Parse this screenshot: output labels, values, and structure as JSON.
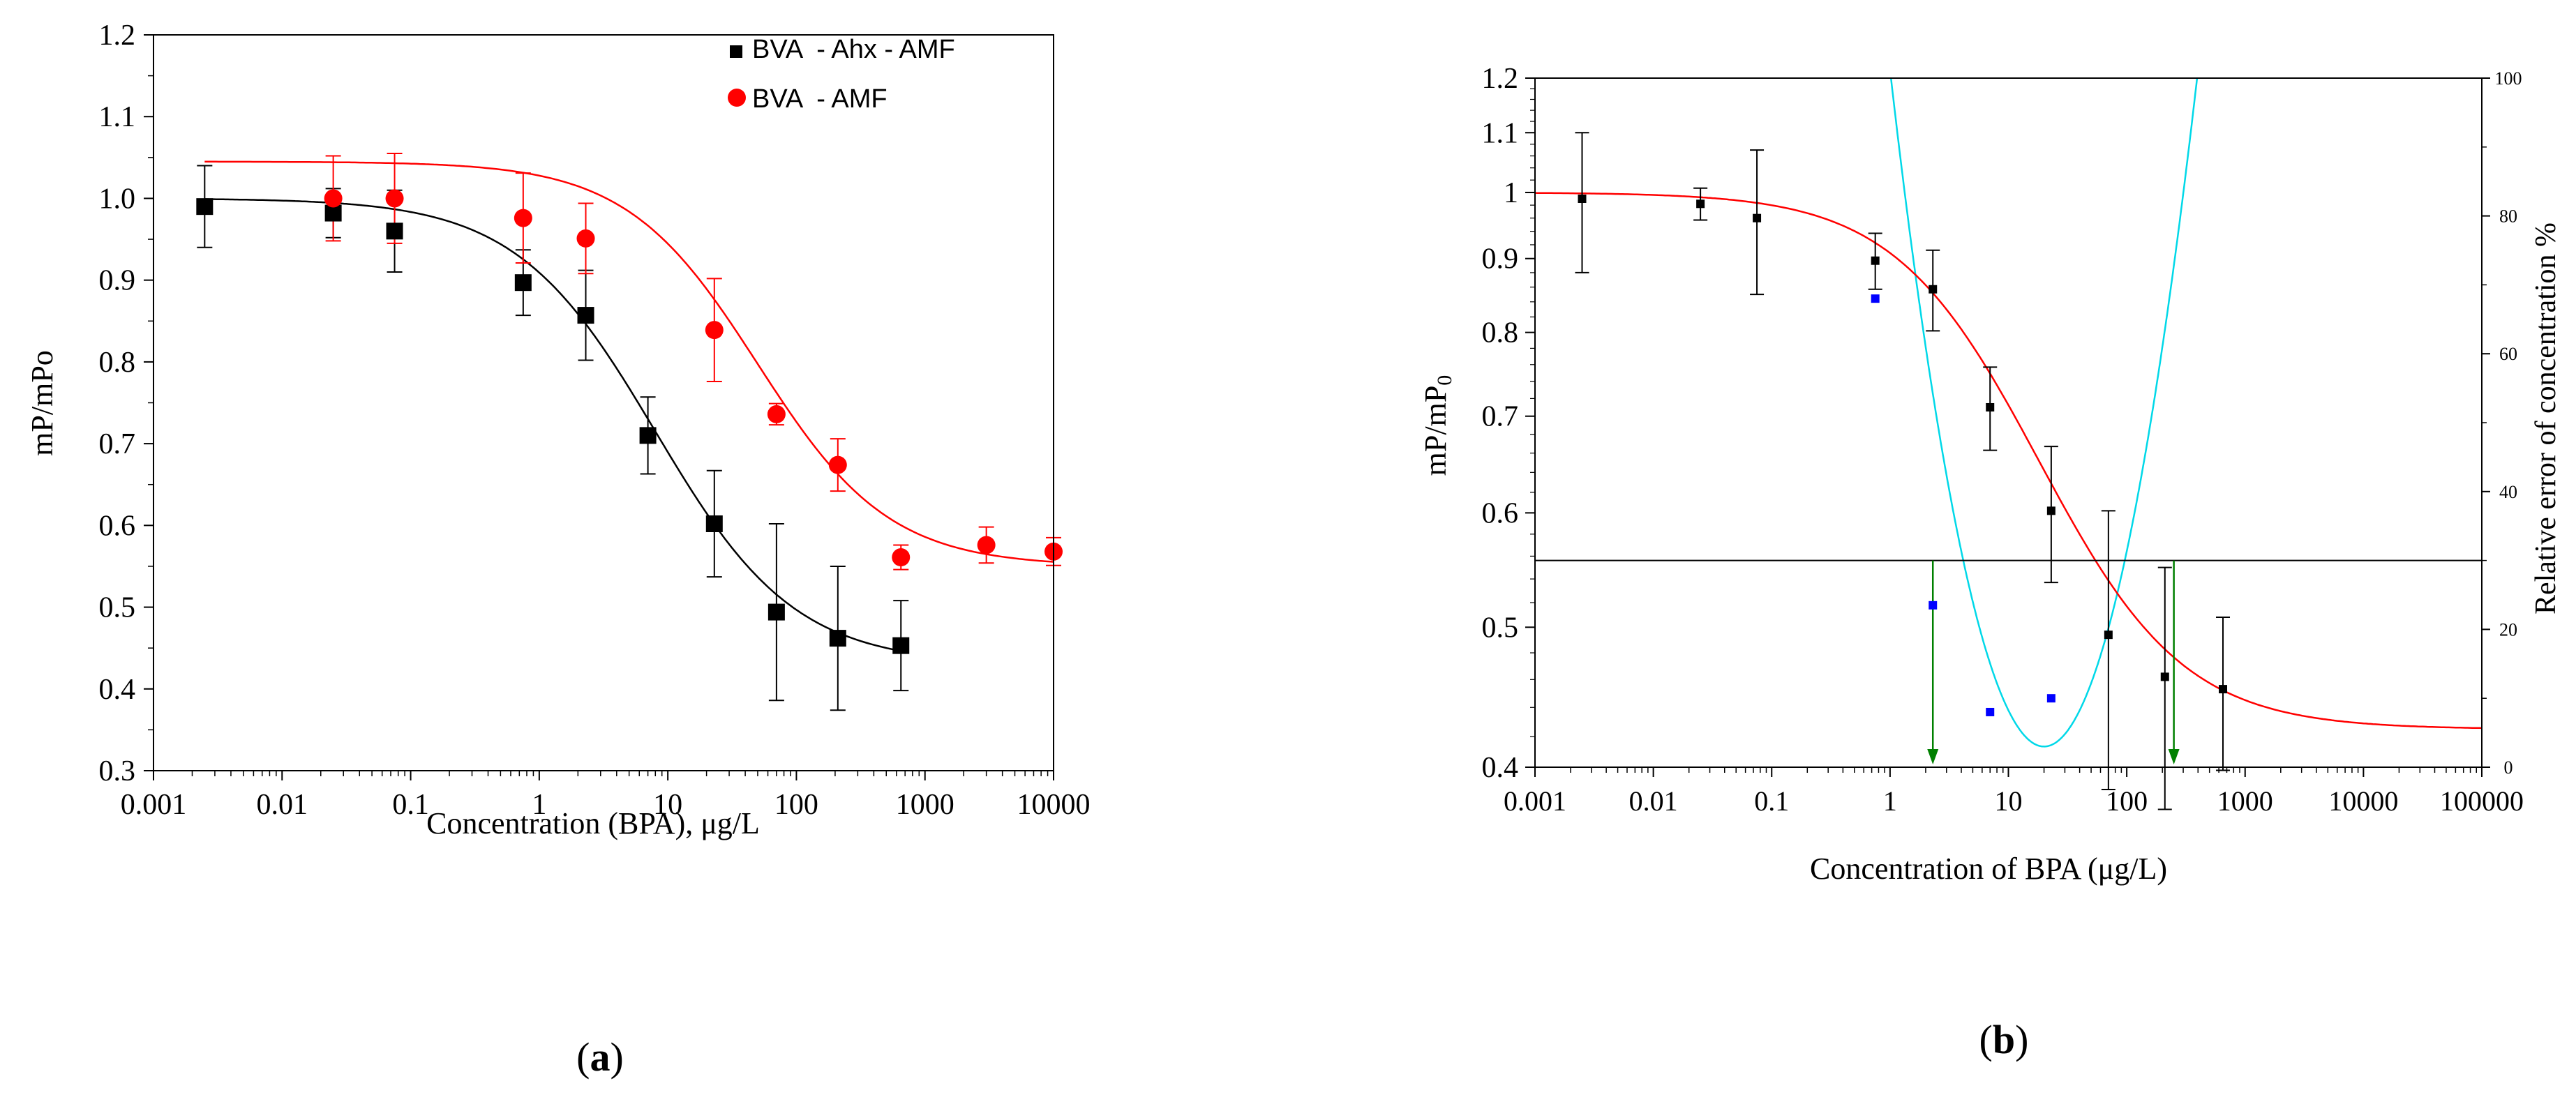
{
  "chart_data": [
    {
      "panel": "a",
      "type": "scatter",
      "panel_label": "a",
      "xlabel": "Concentration (BPA), μg/L",
      "ylabel": "mP/mPo",
      "x_scale": "log",
      "xlim": [
        0.001,
        10000
      ],
      "ylim": [
        0.3,
        1.2
      ],
      "x_tick_labels": [
        "0.001",
        "0.01",
        "0.1",
        "1",
        "10",
        "100",
        "1000",
        "10000"
      ],
      "y_tick_labels": [
        "0.3",
        "0.4",
        "0.5",
        "0.6",
        "0.7",
        "0.8",
        "0.9",
        "1.0",
        "1.1",
        "1.2"
      ],
      "grid": false,
      "legend_position": "top-right",
      "series": [
        {
          "name": "BVA  - Ahx - AMF",
          "marker": "square",
          "color": "#000000",
          "x": [
            0.0025,
            0.025,
            0.075,
            0.75,
            2.3,
            7,
            23,
            70,
            210,
            650
          ],
          "y": [
            0.99,
            0.982,
            0.96,
            0.897,
            0.857,
            0.71,
            0.602,
            0.494,
            0.462,
            0.453
          ],
          "err": [
            0.05,
            0.03,
            0.05,
            0.04,
            0.055,
            0.047,
            0.065,
            0.108,
            0.088,
            0.055
          ],
          "fit": {
            "top": 1.0,
            "bottom": 0.43,
            "ec50": 8,
            "hill": 0.8
          }
        },
        {
          "name": "BVA  - AMF",
          "marker": "circle",
          "color": "#ff0000",
          "x": [
            0.025,
            0.075,
            0.75,
            2.3,
            23,
            70,
            210,
            650,
            3000,
            10000
          ],
          "y": [
            1.0,
            1.0,
            0.976,
            0.951,
            0.839,
            0.736,
            0.674,
            0.561,
            0.576,
            0.568
          ],
          "err": [
            0.052,
            0.055,
            0.055,
            0.043,
            0.063,
            0.013,
            0.032,
            0.015,
            0.022,
            0.017
          ],
          "fit": {
            "top": 1.045,
            "bottom": 0.55,
            "ec50": 50,
            "hill": 0.85
          }
        }
      ]
    },
    {
      "panel": "b",
      "type": "scatter",
      "panel_label": "b",
      "xlabel": "Concentration of BPA (μg/L)",
      "ylabel_main": "mP/mP",
      "ylabel_sub": "0",
      "y2label": "Relative error of concentration %",
      "x_scale": "log",
      "y_scale": "log",
      "xlim": [
        0.001,
        100000
      ],
      "ylim": [
        0.4,
        1.2
      ],
      "y2lim": [
        0,
        100
      ],
      "x_tick_labels": [
        "0.001",
        "0.01",
        "0.1",
        "1",
        "10",
        "100",
        "1000",
        "10000",
        "100000"
      ],
      "y_tick_labels": [
        "0.4",
        "0.5",
        "0.6",
        "0.7",
        "0.8",
        "0.9",
        "1",
        "1.1",
        "1.2"
      ],
      "y2_tick_labels": [
        "0",
        "20",
        "40",
        "60",
        "80",
        "100"
      ],
      "grid": false,
      "threshold_error_percent": 30,
      "working_range": [
        2.3,
        250
      ],
      "series": [
        {
          "name": "mP/mP0",
          "marker": "square",
          "color": "#000000",
          "x": [
            0.0025,
            0.025,
            0.075,
            0.75,
            2.3,
            7,
            23,
            70,
            210,
            650
          ],
          "y": [
            0.99,
            0.982,
            0.96,
            0.897,
            0.857,
            0.71,
            0.602,
            0.494,
            0.462,
            0.453
          ],
          "err": [
            0.11,
            0.025,
            0.11,
            0.04,
            0.055,
            0.047,
            0.065,
            0.108,
            0.088,
            0.055
          ],
          "fit": {
            "top": 1.0,
            "bottom": 0.425,
            "ec50": 10,
            "hill": 0.72,
            "color": "#ff0000"
          }
        },
        {
          "name": "Relative error %",
          "marker": "square",
          "color": "#0000ff",
          "axis": "right",
          "x": [
            0.75,
            2.3,
            7,
            23
          ],
          "y": [
            68,
            23.5,
            8,
            10
          ],
          "curve": {
            "center": 20,
            "min": 3,
            "k": 58,
            "color": "#00d8e8"
          }
        }
      ]
    }
  ]
}
